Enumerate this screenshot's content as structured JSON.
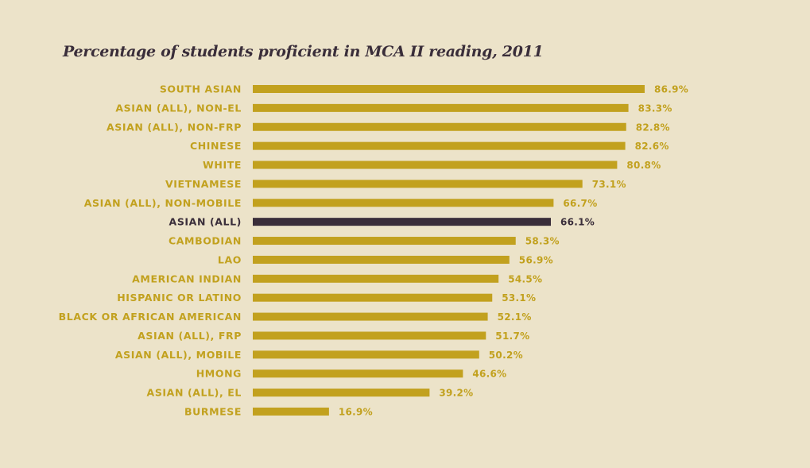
{
  "chart_data": {
    "type": "bar",
    "orientation": "horizontal",
    "title": "Percentage of students proficient in MCA II reading, 2011",
    "xlabel": "",
    "ylabel": "",
    "xlim": [
      0,
      100
    ],
    "grid": false,
    "value_suffix": "%",
    "categories": [
      "SOUTH ASIAN",
      "ASIAN (ALL), NON-EL",
      "ASIAN (ALL), NON-FRP",
      "CHINESE",
      "WHITE",
      "VIETNAMESE",
      "ASIAN (ALL), NON-MOBILE",
      "ASIAN (ALL)",
      "CAMBODIAN",
      "LAO",
      "AMERICAN INDIAN",
      "HISPANIC OR LATINO",
      "BLACK OR AFRICAN AMERICAN",
      "ASIAN (ALL), FRP",
      "ASIAN (ALL), MOBILE",
      "HMONG",
      "ASIAN (ALL), EL",
      "BURMESE"
    ],
    "values": [
      86.9,
      83.3,
      82.8,
      82.6,
      80.8,
      73.1,
      66.7,
      66.1,
      58.3,
      56.9,
      54.5,
      53.1,
      52.1,
      51.7,
      50.2,
      46.6,
      39.2,
      16.9
    ],
    "highlight": "ASIAN (ALL)",
    "colors": {
      "bar": "#c2a11e",
      "highlight": "#3a2e3a",
      "background": "#ece3c9"
    }
  }
}
